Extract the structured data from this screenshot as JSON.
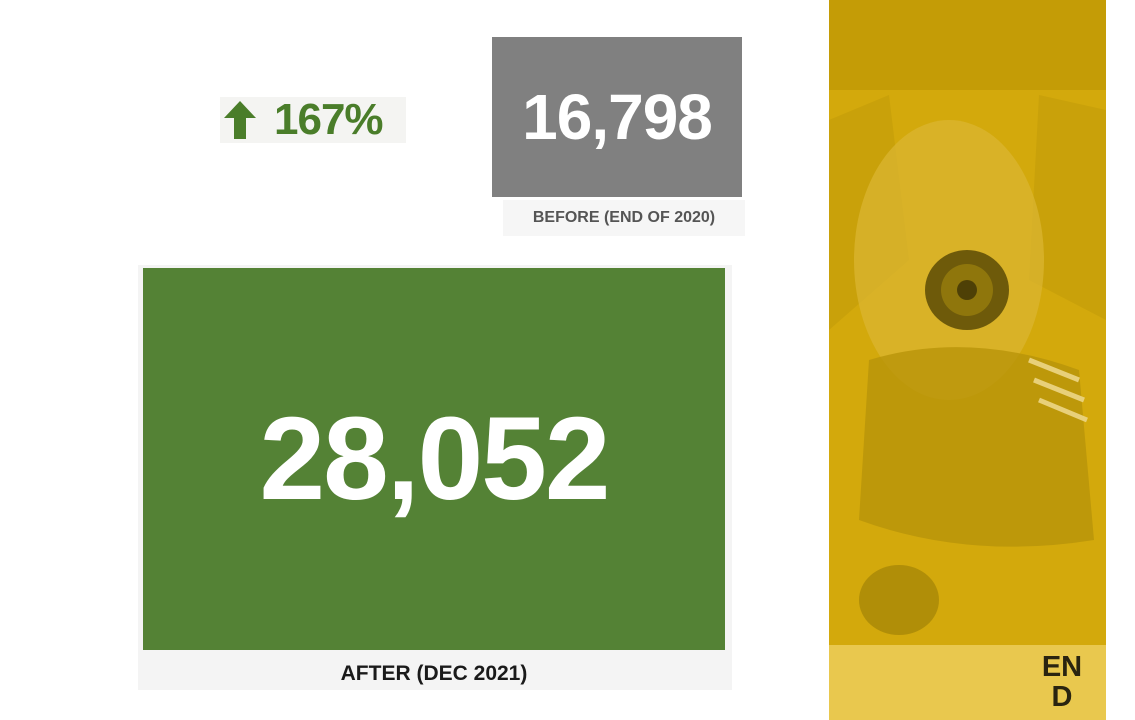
{
  "change": "167%",
  "before": {
    "value": "16,798",
    "label": "BEFORE (END OF 2020)"
  },
  "after": {
    "value": "28,052",
    "label": "AFTER (DEC 2021)"
  },
  "logo": {
    "lines": [
      "EN",
      "D"
    ]
  }
}
